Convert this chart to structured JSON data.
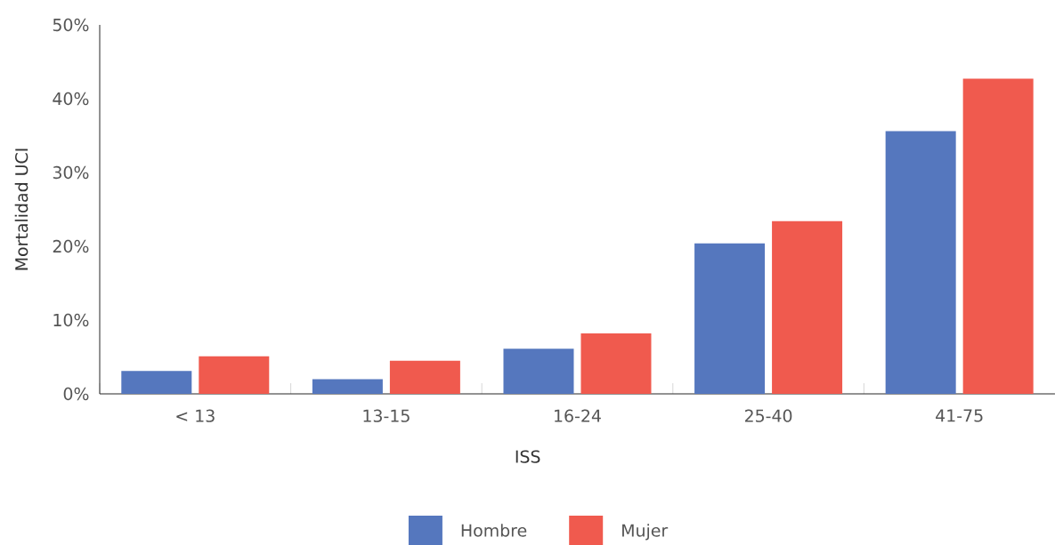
{
  "chart_data": {
    "type": "bar",
    "xlabel": "ISS",
    "ylabel": "Mortalidad UCI",
    "categories": [
      "< 13",
      "13-15",
      "16-24",
      "25-40",
      "41-75"
    ],
    "series": [
      {
        "name": "Hombre",
        "color": "#5577be",
        "values": [
          3.1,
          2.0,
          6.1,
          20.4,
          35.6
        ]
      },
      {
        "name": "Mujer",
        "color": "#f05a4e",
        "values": [
          5.1,
          4.5,
          8.2,
          23.4,
          42.7
        ]
      }
    ],
    "ylim": [
      0,
      50
    ],
    "yticks": [
      {
        "value": 0,
        "label": "0%"
      },
      {
        "value": 10,
        "label": "10%"
      },
      {
        "value": 20,
        "label": "20%"
      },
      {
        "value": 30,
        "label": "30%"
      },
      {
        "value": 40,
        "label": "40%"
      },
      {
        "value": 50,
        "label": "50%"
      }
    ],
    "legend": "bottom"
  }
}
